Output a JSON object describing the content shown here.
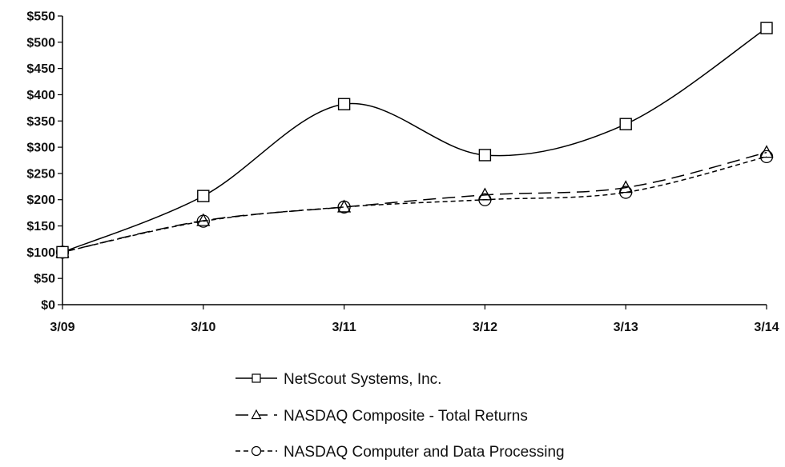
{
  "chart_data": {
    "type": "line",
    "title": "",
    "xlabel": "",
    "ylabel": "",
    "categories": [
      "3/09",
      "3/10",
      "3/11",
      "3/12",
      "3/13",
      "3/14"
    ],
    "ylim": [
      0,
      550
    ],
    "ytick_labels": [
      "$0",
      "$50",
      "$100",
      "$150",
      "$200",
      "$250",
      "$300",
      "$350",
      "$400",
      "$450",
      "$500",
      "$550"
    ],
    "grid": false,
    "legend_position": "bottom-center",
    "series": [
      {
        "name": "NetScout Systems, Inc.",
        "values": [
          100,
          207,
          382,
          285,
          344,
          527
        ],
        "marker": "square",
        "line_style": "solid",
        "color": "#000000"
      },
      {
        "name": "NASDAQ Composite - Total Returns",
        "values": [
          100,
          160,
          186,
          209,
          223,
          290
        ],
        "marker": "triangle",
        "line_style": "long-dash",
        "color": "#000000"
      },
      {
        "name": "NASDAQ Computer and Data Processing",
        "values": [
          100,
          159,
          186,
          200,
          214,
          282
        ],
        "marker": "circle",
        "line_style": "short-dash",
        "color": "#000000"
      }
    ]
  }
}
